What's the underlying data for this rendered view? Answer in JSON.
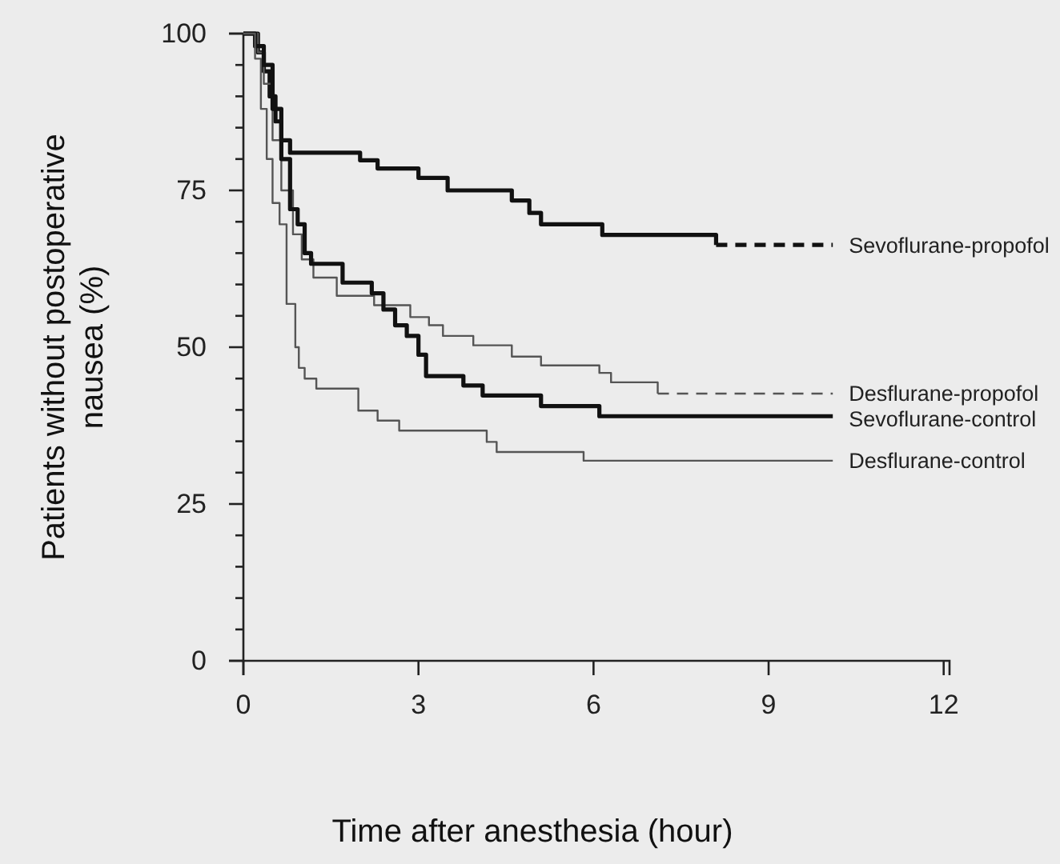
{
  "chart_data": {
    "type": "step",
    "xlabel": "Time after anesthesia (hour)",
    "ylabel": "Patients without postoperative nausea (%)",
    "xlim": [
      0,
      12.1
    ],
    "xticks": [
      0,
      3,
      6,
      9,
      12
    ],
    "ylim": [
      0,
      100
    ],
    "yticks": [
      0,
      {
        "value": 5,
        "label": null
      },
      {
        "value": 10,
        "label": null
      },
      {
        "value": 15,
        "label": null
      },
      {
        "value": 20,
        "label": null
      },
      25,
      {
        "value": 30,
        "label": null
      },
      {
        "value": 35,
        "label": null
      },
      {
        "value": 40,
        "label": null
      },
      {
        "value": 45,
        "label": null
      },
      50,
      {
        "value": 55,
        "label": null
      },
      {
        "value": 60,
        "label": null
      },
      {
        "value": 65,
        "label": null
      },
      {
        "value": 70,
        "label": null
      },
      75,
      {
        "value": 80,
        "label": null
      },
      {
        "value": 85,
        "label": null
      },
      {
        "value": 90,
        "label": null
      },
      {
        "value": 95,
        "label": null
      },
      100
    ],
    "grid": false,
    "legend": false,
    "marker": "none",
    "series": [
      {
        "name": "Sevoflurane-propofol",
        "color": "#111111",
        "line_style": "solid",
        "x": [
          0,
          0.25,
          0.35,
          0.45,
          0.55,
          0.65,
          0.8,
          2.0,
          2.3,
          3.0,
          3.5,
          4.6,
          4.9,
          5.1,
          6.15,
          8.1
        ],
        "values": [
          100,
          97,
          94,
          90,
          86,
          83,
          81,
          79.8,
          78.5,
          77,
          75,
          73.4,
          71.4,
          69.6,
          67.9,
          66.3
        ]
      },
      {
        "color": "#111111",
        "line_style": "dashed",
        "x": [
          8.1,
          10.1
        ],
        "values": [
          66.3,
          66.3
        ]
      },
      {
        "name": "Desflurane-propofol",
        "color": "#555555",
        "line_style": "solid",
        "x": [
          0,
          0.25,
          0.35,
          0.5,
          0.65,
          0.85,
          1.0,
          1.2,
          1.6,
          2.24,
          2.86,
          3.18,
          3.42,
          3.94,
          4.6,
          5.1,
          6.1,
          6.3,
          7.1
        ],
        "values": [
          100,
          97,
          92,
          83,
          75,
          68,
          64,
          61.1,
          58.2,
          56.7,
          54.8,
          53.5,
          51.8,
          50.3,
          48.5,
          47.1,
          45.9,
          44.4,
          42.6
        ]
      },
      {
        "color": "#555555",
        "line_style": "dashed",
        "x": [
          7.1,
          10.1
        ],
        "values": [
          42.6,
          42.6
        ]
      },
      {
        "name": "Sevoflurane-control",
        "color": "#111111",
        "line_style": "solid",
        "x": [
          0,
          0.2,
          0.35,
          0.5,
          0.65,
          0.8,
          0.93,
          1.05,
          1.16,
          1.7,
          2.2,
          2.4,
          2.6,
          2.8,
          3.0,
          3.13,
          3.77,
          4.1,
          5.1,
          6.1,
          10.1
        ],
        "values": [
          100,
          98,
          95,
          88,
          80,
          72,
          69.6,
          65,
          63.3,
          60.3,
          58.6,
          56,
          53.5,
          51.8,
          48.8,
          45.4,
          43.9,
          42.3,
          40.6,
          39,
          39
        ]
      },
      {
        "name": "Desflurane-control",
        "color": "#555555",
        "line_style": "solid",
        "x": [
          0,
          0.2,
          0.3,
          0.4,
          0.5,
          0.62,
          0.74,
          0.89,
          0.95,
          1.05,
          1.25,
          1.97,
          2.3,
          2.67,
          4.17,
          4.34,
          5.83,
          10.1
        ],
        "values": [
          100,
          96,
          88,
          80,
          73,
          69.6,
          56.9,
          50,
          46.7,
          45,
          43.4,
          39.9,
          38.3,
          36.7,
          34.9,
          33.3,
          31.9,
          31.9
        ]
      }
    ]
  }
}
